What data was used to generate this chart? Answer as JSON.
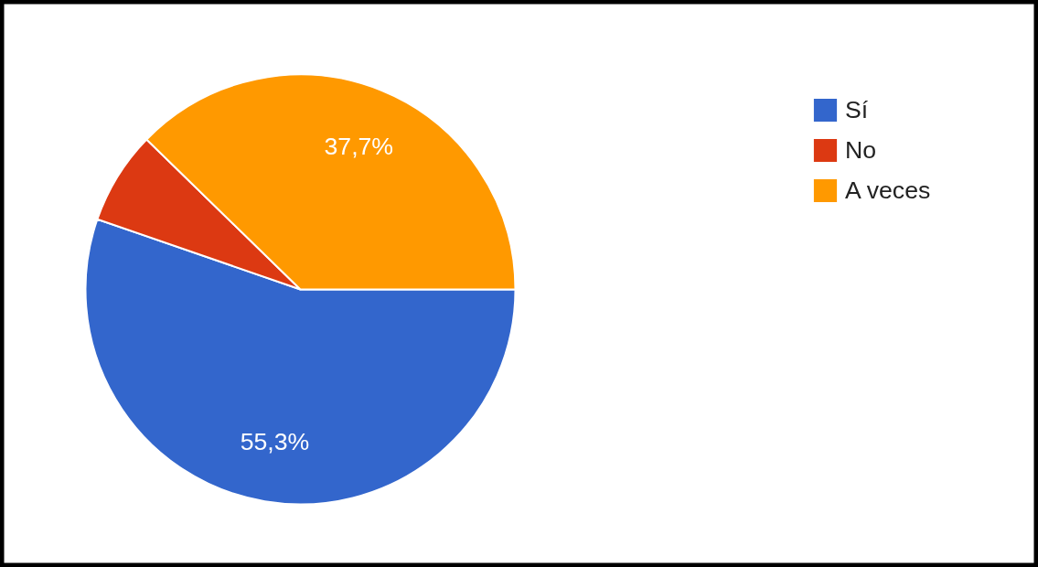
{
  "chart_data": {
    "type": "pie",
    "categories": [
      "Sí",
      "No",
      "A veces"
    ],
    "values": [
      55.3,
      7.0,
      37.7
    ],
    "colors": [
      "#3366cc",
      "#dc3912",
      "#ff9900"
    ],
    "value_labels": [
      "55,3%",
      null,
      "37,7%"
    ],
    "legend": "top right"
  }
}
